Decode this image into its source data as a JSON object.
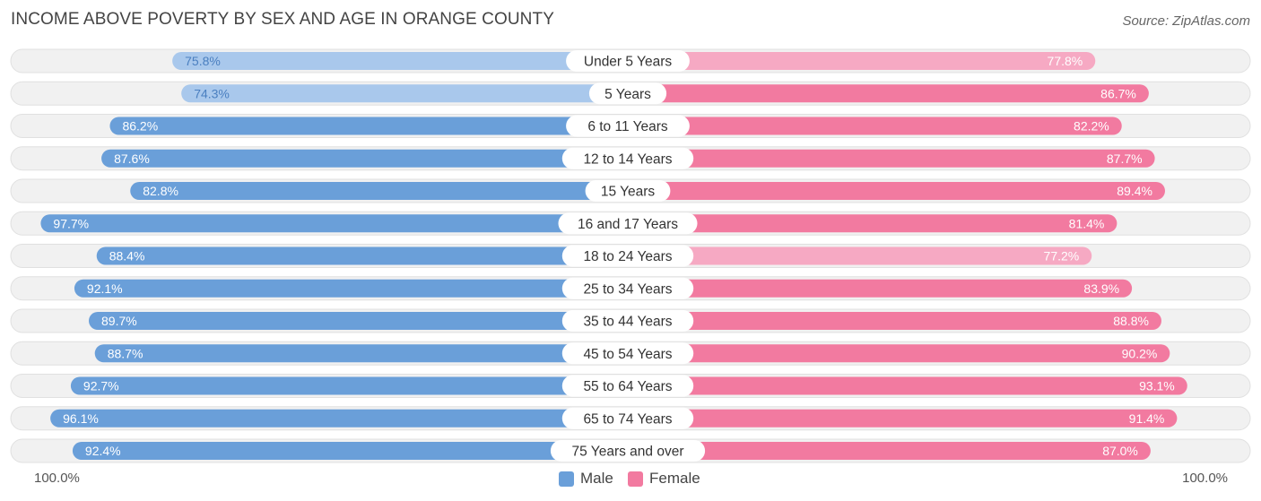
{
  "title": "INCOME ABOVE POVERTY BY SEX AND AGE IN ORANGE COUNTY",
  "source": "Source: ZipAtlas.com",
  "axis": {
    "left_label": "100.0%",
    "right_label": "100.0%"
  },
  "legend": {
    "male_label": "Male",
    "female_label": "Female"
  },
  "colors": {
    "male_strong": "#6a9fd9",
    "male_light": "#a9c8ec",
    "female_strong": "#f27aa0",
    "female_light": "#f6a9c3",
    "row_bg": "#f1f1f1",
    "row_border": "#e0e0e0"
  },
  "chart_data": {
    "type": "bar",
    "orientation": "horizontal-diverging",
    "title": "INCOME ABOVE POVERTY BY SEX AND AGE IN ORANGE COUNTY",
    "xlim": [
      0,
      100
    ],
    "unit": "%",
    "categories": [
      "Under 5 Years",
      "5 Years",
      "6 to 11 Years",
      "12 to 14 Years",
      "15 Years",
      "16 and 17 Years",
      "18 to 24 Years",
      "25 to 34 Years",
      "35 to 44 Years",
      "45 to 54 Years",
      "55 to 64 Years",
      "65 to 74 Years",
      "75 Years and over"
    ],
    "series": [
      {
        "name": "Male",
        "values": [
          75.8,
          74.3,
          86.2,
          87.6,
          82.8,
          97.7,
          88.4,
          92.1,
          89.7,
          88.7,
          92.7,
          96.1,
          92.4
        ],
        "labels": [
          "75.8%",
          "74.3%",
          "86.2%",
          "87.6%",
          "82.8%",
          "97.7%",
          "88.4%",
          "92.1%",
          "89.7%",
          "88.7%",
          "92.7%",
          "96.1%",
          "92.4%"
        ]
      },
      {
        "name": "Female",
        "values": [
          77.8,
          86.7,
          82.2,
          87.7,
          89.4,
          81.4,
          77.2,
          83.9,
          88.8,
          90.2,
          93.1,
          91.4,
          87.0
        ],
        "labels": [
          "77.8%",
          "86.7%",
          "82.2%",
          "87.7%",
          "89.4%",
          "81.4%",
          "77.2%",
          "83.9%",
          "88.8%",
          "90.2%",
          "93.1%",
          "91.4%",
          "87.0%"
        ]
      }
    ]
  }
}
